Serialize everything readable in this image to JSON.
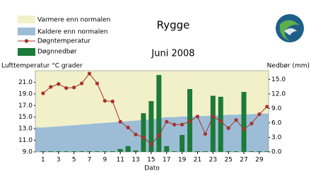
{
  "chart_data": {
    "type": "combo",
    "title": "Rygge",
    "subtitle": "Juni 2008",
    "y_label": "Lufttemperatur °C grader",
    "y2_label": "Nedbør (mm)",
    "x_label": "Dato",
    "x": [
      1,
      2,
      3,
      4,
      5,
      6,
      7,
      8,
      9,
      10,
      11,
      12,
      13,
      14,
      15,
      16,
      17,
      18,
      19,
      20,
      21,
      22,
      23,
      24,
      25,
      26,
      27,
      28,
      29,
      30
    ],
    "xlim": [
      0,
      30.2
    ],
    "xticks": [
      1,
      3,
      5,
      7,
      9,
      11,
      13,
      15,
      17,
      19,
      21,
      23,
      25,
      27,
      29
    ],
    "ylim": [
      9,
      23
    ],
    "yticks": [
      {
        "value": 9,
        "label": "9.0"
      },
      {
        "value": 11,
        "label": "11.0"
      },
      {
        "value": 13,
        "label": "13.0"
      },
      {
        "value": 15,
        "label": "15.0"
      },
      {
        "value": 17,
        "label": "17.0"
      },
      {
        "value": 19,
        "label": "19.0"
      },
      {
        "value": 21,
        "label": "21.0"
      }
    ],
    "y2lim": [
      0,
      16.8
    ],
    "y2ticks": [
      {
        "value": 0,
        "label": "0.0"
      },
      {
        "value": 3,
        "label": "3.0"
      },
      {
        "value": 6,
        "label": "6.0"
      },
      {
        "value": 9,
        "label": "9.0"
      },
      {
        "value": 12,
        "label": "12.0"
      },
      {
        "value": 15,
        "label": "15.0"
      }
    ],
    "normal": {
      "values": [
        13.2,
        13.3,
        13.4,
        13.5,
        13.6,
        13.7,
        13.8,
        13.9,
        14.0,
        14.1,
        14.2,
        14.3,
        14.4,
        14.5,
        14.6,
        14.8,
        15.0,
        15.0,
        15.1,
        15.1,
        15.2,
        15.2,
        15.3,
        15.3,
        15.4,
        15.4,
        15.5,
        15.5,
        15.6,
        15.6
      ],
      "above": {
        "name": "Varmere enn normalen",
        "color": "#f2f0c9"
      },
      "below": {
        "name": "Kaldere enn normalen",
        "color": "#9dbdd7"
      }
    },
    "series": [
      {
        "name": "Døgntemperatur",
        "type": "line",
        "color": "#a8322c",
        "values": [
          19.1,
          20.2,
          20.7,
          20.0,
          20.1,
          20.8,
          22.5,
          20.8,
          17.8,
          17.7,
          14.2,
          13.2,
          12.0,
          11.5,
          10.3,
          11.8,
          14.2,
          13.7,
          13.7,
          14.3,
          15.1,
          12.1,
          15.1,
          14.3,
          13.1,
          14.5,
          12.9,
          13.9,
          15.5,
          16.8
        ]
      },
      {
        "name": "Døgnnedbør",
        "type": "bar",
        "axis": "y2",
        "color": "#1c7a3a",
        "values": [
          0,
          0,
          0,
          0,
          0,
          0,
          0,
          0,
          0,
          0,
          0.6,
          1.2,
          0.3,
          8.0,
          10.5,
          15.9,
          1.2,
          0,
          3.5,
          13.0,
          0,
          0,
          11.6,
          11.4,
          0,
          0,
          12.4,
          0,
          0,
          0
        ]
      }
    ]
  }
}
